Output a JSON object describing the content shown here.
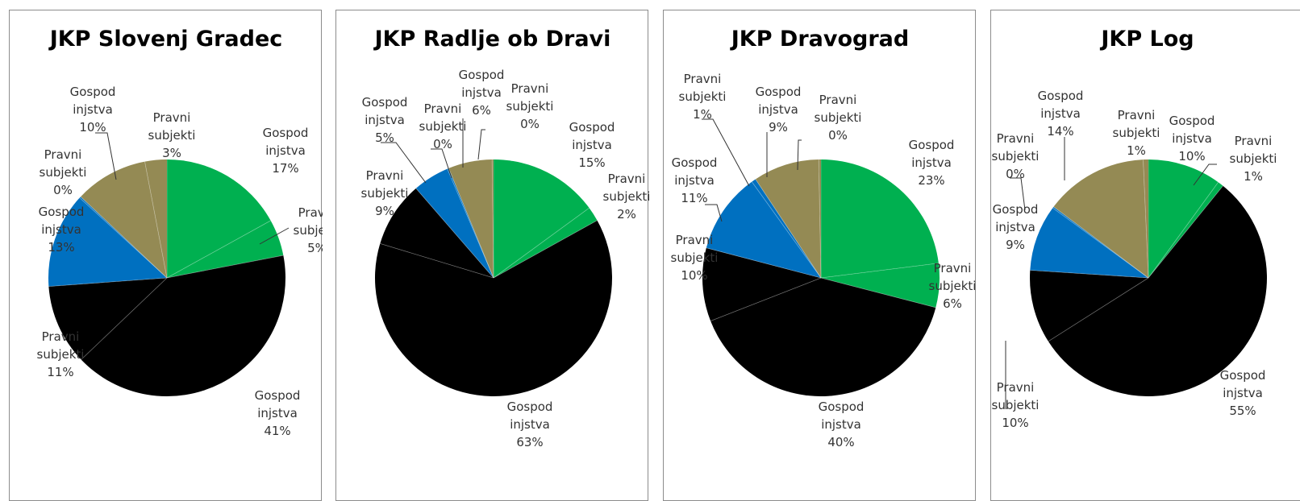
{
  "chart_data": [
    {
      "type": "pie",
      "title": "JKP Slovenj Gradec",
      "slices": [
        {
          "label": [
            "Gospod",
            "injstva",
            "17%"
          ],
          "value": 17,
          "color": "#00b050"
        },
        {
          "label": [
            "Pravni",
            "subjekti",
            "5%"
          ],
          "value": 5,
          "color": "#00b050"
        },
        {
          "label": [
            "Gospod",
            "injstva",
            "41%"
          ],
          "value": 41,
          "color": "#000000"
        },
        {
          "label": [
            "Pravni",
            "subjekti",
            "11%"
          ],
          "value": 11,
          "color": "#000000"
        },
        {
          "label": [
            "Gospod",
            "injstva",
            "13%"
          ],
          "value": 13,
          "color": "#0070c0"
        },
        {
          "label": [
            "Pravni",
            "subjekti",
            "0%"
          ],
          "value": 0.2,
          "color": "#0070c0"
        },
        {
          "label": [
            "Gospod",
            "injstva",
            "10%"
          ],
          "value": 10,
          "color": "#948a54"
        },
        {
          "label": [
            "Pravni",
            "subjekti",
            "3%"
          ],
          "value": 3,
          "color": "#948a54"
        }
      ]
    },
    {
      "type": "pie",
      "title": "JKP Radlje ob Dravi",
      "slices": [
        {
          "label": [
            "Gospod",
            "injstva",
            "15%"
          ],
          "value": 15,
          "color": "#00b050"
        },
        {
          "label": [
            "Pravni",
            "subjekti",
            "2%"
          ],
          "value": 2,
          "color": "#00b050"
        },
        {
          "label": [
            "Gospod",
            "injstva",
            "63%"
          ],
          "value": 63,
          "color": "#000000"
        },
        {
          "label": [
            "Pravni",
            "subjekti",
            "9%"
          ],
          "value": 9,
          "color": "#000000"
        },
        {
          "label": [
            "Gospod",
            "injstva",
            "5%"
          ],
          "value": 5,
          "color": "#0070c0"
        },
        {
          "label": [
            "Pravni",
            "subjekti",
            "0%"
          ],
          "value": 0.2,
          "color": "#0070c0"
        },
        {
          "label": [
            "Gospod",
            "injstva",
            "6%"
          ],
          "value": 6,
          "color": "#948a54"
        },
        {
          "label": [
            "Pravni",
            "subjekti",
            "0%"
          ],
          "value": 0.2,
          "color": "#948a54"
        }
      ]
    },
    {
      "type": "pie",
      "title": "JKP Dravograd",
      "slices": [
        {
          "label": [
            "Gospod",
            "injstva",
            "23%"
          ],
          "value": 23,
          "color": "#00b050"
        },
        {
          "label": [
            "Pravni",
            "subjekti",
            "6%"
          ],
          "value": 6,
          "color": "#00b050"
        },
        {
          "label": [
            "Gospod",
            "injstva",
            "40%"
          ],
          "value": 40,
          "color": "#000000"
        },
        {
          "label": [
            "Pravni",
            "subjekti",
            "10%"
          ],
          "value": 10,
          "color": "#000000"
        },
        {
          "label": [
            "Gospod",
            "injstva",
            "11%"
          ],
          "value": 11,
          "color": "#0070c0"
        },
        {
          "label": [
            "Pravni",
            "subjekti",
            "1%"
          ],
          "value": 0.6,
          "color": "#0070c0"
        },
        {
          "label": [
            "Gospod",
            "injstva",
            "9%"
          ],
          "value": 9,
          "color": "#948a54"
        },
        {
          "label": [
            "Pravni",
            "subjekti",
            "0%"
          ],
          "value": 0.3,
          "color": "#948a54"
        }
      ]
    },
    {
      "type": "pie",
      "title": "JKP Log",
      "slices": [
        {
          "label": [
            "Gospod",
            "injstva",
            "10%"
          ],
          "value": 10,
          "color": "#00b050"
        },
        {
          "label": [
            "Pravni",
            "subjekti",
            "1%"
          ],
          "value": 0.8,
          "color": "#00b050"
        },
        {
          "label": [
            "Gospod",
            "injstva",
            "55%"
          ],
          "value": 55,
          "color": "#000000"
        },
        {
          "label": [
            "Pravni",
            "subjekti",
            "10%"
          ],
          "value": 10,
          "color": "#000000"
        },
        {
          "label": [
            "Gospod",
            "injstva",
            "9%"
          ],
          "value": 9,
          "color": "#0070c0"
        },
        {
          "label": [
            "Pravni",
            "subjekti",
            "0%"
          ],
          "value": 0.2,
          "color": "#0070c0"
        },
        {
          "label": [
            "Gospod",
            "injstva",
            "14%"
          ],
          "value": 14,
          "color": "#948a54"
        },
        {
          "label": [
            "Pravni",
            "subjekti",
            "1%"
          ],
          "value": 0.7,
          "color": "#948a54"
        }
      ]
    }
  ]
}
